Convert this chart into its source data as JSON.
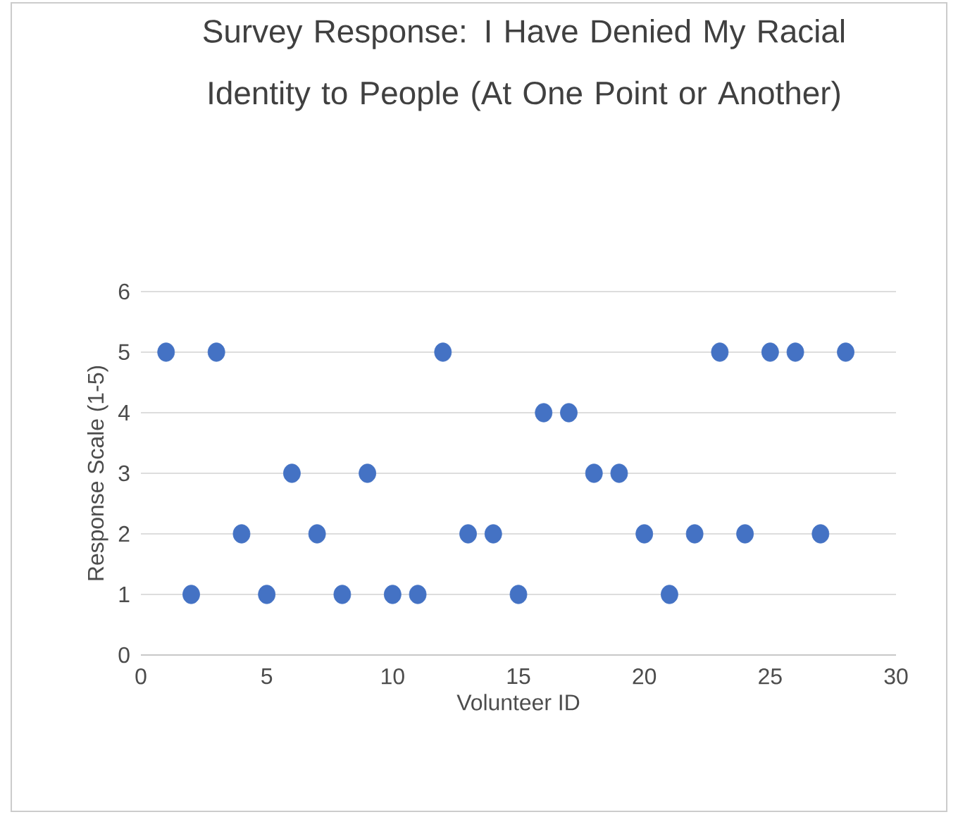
{
  "chart_data": {
    "type": "scatter",
    "title": "Survey Response: I Have Denied My Racial Identity to People (At One Point or Another)",
    "xlabel": "Volunteer ID",
    "ylabel": "Response Scale (1-5)",
    "x": [
      1,
      2,
      3,
      4,
      5,
      6,
      7,
      8,
      9,
      10,
      11,
      12,
      13,
      14,
      15,
      16,
      17,
      18,
      19,
      20,
      21,
      22,
      23,
      24,
      25,
      26,
      27,
      28
    ],
    "values": [
      5,
      1,
      5,
      2,
      1,
      3,
      2,
      1,
      3,
      1,
      1,
      5,
      2,
      2,
      1,
      4,
      4,
      3,
      3,
      2,
      1,
      2,
      5,
      2,
      5,
      5,
      2,
      5
    ],
    "color": "#4472c4",
    "marker": "circle",
    "xlim": [
      0,
      30
    ],
    "xticks": [
      0,
      5,
      10,
      15,
      20,
      25,
      30
    ],
    "ylim": [
      0,
      6
    ],
    "yticks": [
      0,
      1,
      2,
      3,
      4,
      5,
      6
    ],
    "grid": "y"
  }
}
